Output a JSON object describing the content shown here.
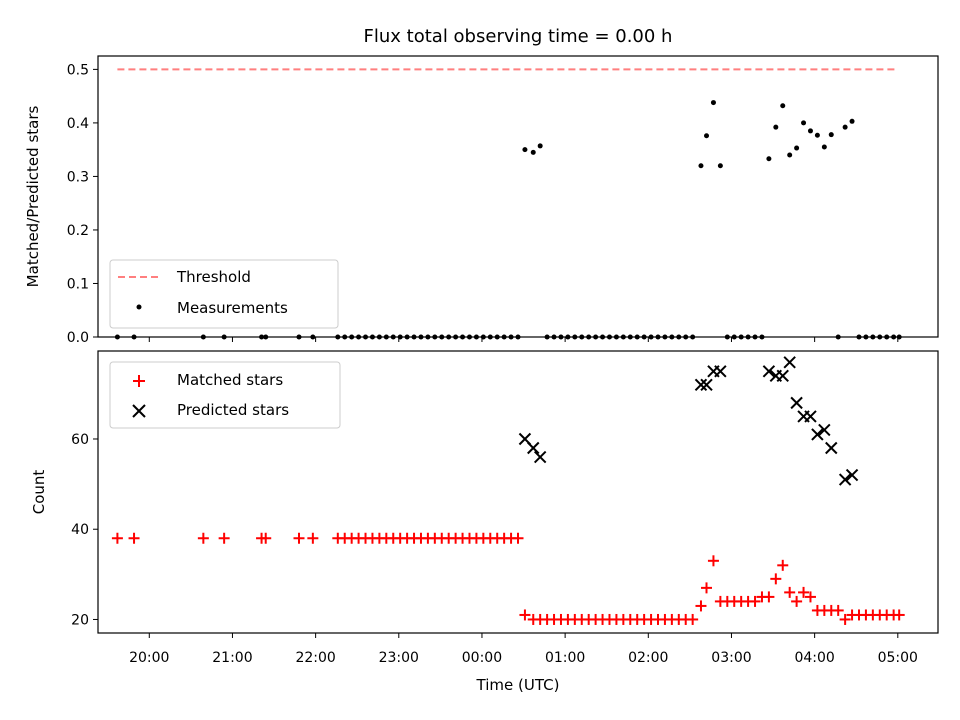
{
  "chart_data": [
    {
      "type": "scatter",
      "title": "Flux total observing time = 0.00 h",
      "xlabel": "",
      "ylabel": "Matched/Predicted stars",
      "xlim": [
        "19:23",
        "05:29"
      ],
      "ylim": [
        0,
        0.525
      ],
      "yticks": [
        0.0,
        0.1,
        0.2,
        0.3,
        0.4,
        0.5
      ],
      "ytick_labels": [
        "0.0",
        "0.1",
        "0.2",
        "0.3",
        "0.4",
        "0.5"
      ],
      "legend_position": "lower-left",
      "series": [
        {
          "name": "Threshold",
          "kind": "dashed-line",
          "color": "#ff7f7f",
          "x": [
            "19:37",
            "05:00"
          ],
          "y": [
            0.5,
            0.5
          ]
        },
        {
          "name": "Measurements",
          "kind": "dots",
          "color": "#000000",
          "points": [
            [
              "19:37",
              0
            ],
            [
              "19:49",
              0
            ],
            [
              "20:39",
              0
            ],
            [
              "20:54",
              0
            ],
            [
              "21:21",
              0
            ],
            [
              "21:24",
              0
            ],
            [
              "21:48",
              0
            ],
            [
              "21:58",
              0
            ],
            [
              "22:16",
              0
            ],
            [
              "22:21",
              0
            ],
            [
              "22:26",
              0
            ],
            [
              "22:31",
              0
            ],
            [
              "22:36",
              0
            ],
            [
              "22:41",
              0
            ],
            [
              "22:46",
              0
            ],
            [
              "22:51",
              0
            ],
            [
              "22:56",
              0
            ],
            [
              "23:01",
              0
            ],
            [
              "23:06",
              0
            ],
            [
              "23:11",
              0
            ],
            [
              "23:16",
              0
            ],
            [
              "23:21",
              0
            ],
            [
              "23:26",
              0
            ],
            [
              "23:31",
              0
            ],
            [
              "23:36",
              0
            ],
            [
              "23:41",
              0
            ],
            [
              "23:46",
              0
            ],
            [
              "23:51",
              0
            ],
            [
              "23:56",
              0
            ],
            [
              "00:01",
              0
            ],
            [
              "00:06",
              0
            ],
            [
              "00:11",
              0
            ],
            [
              "00:16",
              0
            ],
            [
              "00:21",
              0
            ],
            [
              "00:26",
              0
            ],
            [
              "00:31",
              0.35
            ],
            [
              "00:37",
              0.345
            ],
            [
              "00:42",
              0.357
            ],
            [
              "00:47",
              0
            ],
            [
              "00:52",
              0
            ],
            [
              "00:57",
              0
            ],
            [
              "01:02",
              0
            ],
            [
              "01:07",
              0
            ],
            [
              "01:12",
              0
            ],
            [
              "01:17",
              0
            ],
            [
              "01:22",
              0
            ],
            [
              "01:27",
              0
            ],
            [
              "01:32",
              0
            ],
            [
              "01:37",
              0
            ],
            [
              "01:42",
              0
            ],
            [
              "01:47",
              0
            ],
            [
              "01:52",
              0
            ],
            [
              "01:57",
              0
            ],
            [
              "02:02",
              0
            ],
            [
              "02:07",
              0
            ],
            [
              "02:12",
              0
            ],
            [
              "02:17",
              0
            ],
            [
              "02:22",
              0
            ],
            [
              "02:27",
              0
            ],
            [
              "02:32",
              0
            ],
            [
              "02:38",
              0.32
            ],
            [
              "02:42",
              0.376
            ],
            [
              "02:47",
              0.438
            ],
            [
              "02:52",
              0.32
            ],
            [
              "02:57",
              0
            ],
            [
              "03:02",
              0
            ],
            [
              "03:07",
              0
            ],
            [
              "03:12",
              0
            ],
            [
              "03:17",
              0
            ],
            [
              "03:22",
              0
            ],
            [
              "03:27",
              0.333
            ],
            [
              "03:32",
              0.392
            ],
            [
              "03:37",
              0.432
            ],
            [
              "03:42",
              0.34
            ],
            [
              "03:47",
              0.353
            ],
            [
              "03:52",
              0.4
            ],
            [
              "03:57",
              0.385
            ],
            [
              "04:02",
              0.377
            ],
            [
              "04:07",
              0.355
            ],
            [
              "04:12",
              0.378
            ],
            [
              "04:17",
              0
            ],
            [
              "04:22",
              0.392
            ],
            [
              "04:27",
              0.403
            ],
            [
              "04:32",
              0
            ],
            [
              "04:37",
              0
            ],
            [
              "04:42",
              0
            ],
            [
              "04:47",
              0
            ],
            [
              "04:52",
              0
            ],
            [
              "04:57",
              0
            ],
            [
              "05:01",
              0
            ]
          ]
        }
      ]
    },
    {
      "type": "scatter",
      "title": "",
      "xlabel": "Time (UTC)",
      "ylabel": "Count",
      "xlim": [
        "19:23",
        "05:29"
      ],
      "ylim": [
        17,
        79.5
      ],
      "yticks": [
        20,
        40,
        60
      ],
      "ytick_labels": [
        "20",
        "40",
        "60"
      ],
      "xticks": [
        "20:00",
        "21:00",
        "22:00",
        "23:00",
        "00:00",
        "01:00",
        "02:00",
        "03:00",
        "04:00",
        "05:00"
      ],
      "legend_position": "upper-left",
      "series": [
        {
          "name": "Matched stars",
          "marker": "plus",
          "color": "#ff0000",
          "points": [
            [
              "19:37",
              38
            ],
            [
              "19:49",
              38
            ],
            [
              "20:39",
              38
            ],
            [
              "20:54",
              38
            ],
            [
              "21:21",
              38
            ],
            [
              "21:24",
              38
            ],
            [
              "21:48",
              38
            ],
            [
              "21:58",
              38
            ],
            [
              "22:16",
              38
            ],
            [
              "22:21",
              38
            ],
            [
              "22:26",
              38
            ],
            [
              "22:31",
              38
            ],
            [
              "22:36",
              38
            ],
            [
              "22:41",
              38
            ],
            [
              "22:46",
              38
            ],
            [
              "22:51",
              38
            ],
            [
              "22:56",
              38
            ],
            [
              "23:01",
              38
            ],
            [
              "23:06",
              38
            ],
            [
              "23:11",
              38
            ],
            [
              "23:16",
              38
            ],
            [
              "23:21",
              38
            ],
            [
              "23:26",
              38
            ],
            [
              "23:31",
              38
            ],
            [
              "23:36",
              38
            ],
            [
              "23:41",
              38
            ],
            [
              "23:46",
              38
            ],
            [
              "23:51",
              38
            ],
            [
              "23:56",
              38
            ],
            [
              "00:01",
              38
            ],
            [
              "00:06",
              38
            ],
            [
              "00:11",
              38
            ],
            [
              "00:16",
              38
            ],
            [
              "00:21",
              38
            ],
            [
              "00:26",
              38
            ],
            [
              "00:31",
              21
            ],
            [
              "00:37",
              20
            ],
            [
              "00:42",
              20
            ],
            [
              "00:47",
              20
            ],
            [
              "00:52",
              20
            ],
            [
              "00:57",
              20
            ],
            [
              "01:02",
              20
            ],
            [
              "01:07",
              20
            ],
            [
              "01:12",
              20
            ],
            [
              "01:17",
              20
            ],
            [
              "01:22",
              20
            ],
            [
              "01:27",
              20
            ],
            [
              "01:32",
              20
            ],
            [
              "01:37",
              20
            ],
            [
              "01:42",
              20
            ],
            [
              "01:47",
              20
            ],
            [
              "01:52",
              20
            ],
            [
              "01:57",
              20
            ],
            [
              "02:02",
              20
            ],
            [
              "02:07",
              20
            ],
            [
              "02:12",
              20
            ],
            [
              "02:17",
              20
            ],
            [
              "02:22",
              20
            ],
            [
              "02:27",
              20
            ],
            [
              "02:32",
              20
            ],
            [
              "02:38",
              23
            ],
            [
              "02:42",
              27
            ],
            [
              "02:47",
              33
            ],
            [
              "02:52",
              24
            ],
            [
              "02:57",
              24
            ],
            [
              "03:02",
              24
            ],
            [
              "03:07",
              24
            ],
            [
              "03:12",
              24
            ],
            [
              "03:17",
              24
            ],
            [
              "03:22",
              25
            ],
            [
              "03:27",
              25
            ],
            [
              "03:32",
              29
            ],
            [
              "03:37",
              32
            ],
            [
              "03:42",
              26
            ],
            [
              "03:47",
              24
            ],
            [
              "03:52",
              26
            ],
            [
              "03:57",
              25
            ],
            [
              "04:02",
              22
            ],
            [
              "04:07",
              22
            ],
            [
              "04:12",
              22
            ],
            [
              "04:17",
              22
            ],
            [
              "04:22",
              20
            ],
            [
              "04:27",
              21
            ],
            [
              "04:32",
              21
            ],
            [
              "04:37",
              21
            ],
            [
              "04:42",
              21
            ],
            [
              "04:47",
              21
            ],
            [
              "04:52",
              21
            ],
            [
              "04:57",
              21
            ],
            [
              "05:01",
              21
            ]
          ]
        },
        {
          "name": "Predicted stars",
          "marker": "x",
          "color": "#000000",
          "points": [
            [
              "00:31",
              60
            ],
            [
              "00:37",
              58
            ],
            [
              "00:42",
              56
            ],
            [
              "02:38",
              72
            ],
            [
              "02:42",
              72
            ],
            [
              "02:47",
              75
            ],
            [
              "02:52",
              75
            ],
            [
              "03:27",
              75
            ],
            [
              "03:32",
              74
            ],
            [
              "03:37",
              74
            ],
            [
              "03:42",
              77
            ],
            [
              "03:47",
              68
            ],
            [
              "03:52",
              65
            ],
            [
              "03:57",
              65
            ],
            [
              "04:02",
              61
            ],
            [
              "04:07",
              62
            ],
            [
              "04:12",
              58
            ],
            [
              "04:22",
              51
            ],
            [
              "04:27",
              52
            ]
          ]
        }
      ]
    }
  ]
}
